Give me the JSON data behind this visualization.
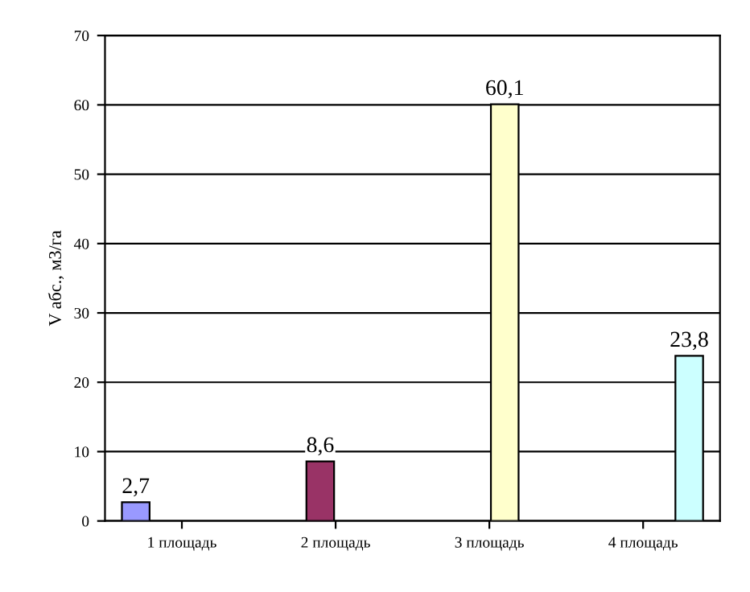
{
  "chart_data": {
    "type": "bar",
    "ylabel": "V абс., м3/га",
    "categories": [
      "1 площадь",
      "2 площадь",
      "3 площадь",
      "4 площадь"
    ],
    "series": [
      {
        "color": "#9999ff",
        "values": [
          2.7,
          null,
          null,
          null
        ],
        "value_labels": [
          "2,7",
          null,
          null,
          null
        ]
      },
      {
        "color": "#993366",
        "values": [
          null,
          8.6,
          null,
          null
        ],
        "value_labels": [
          null,
          "8,6",
          null,
          null
        ]
      },
      {
        "color": "#ffffcc",
        "values": [
          null,
          null,
          60.1,
          null
        ],
        "value_labels": [
          null,
          null,
          "60,1",
          null
        ]
      },
      {
        "color": "#ccffff",
        "values": [
          null,
          null,
          null,
          23.8
        ],
        "value_labels": [
          null,
          null,
          null,
          "23,8"
        ]
      }
    ],
    "ylim": [
      0,
      70
    ],
    "yticks": [
      0,
      10,
      20,
      30,
      40,
      50,
      60,
      70
    ],
    "grid": "y",
    "legend": false
  }
}
